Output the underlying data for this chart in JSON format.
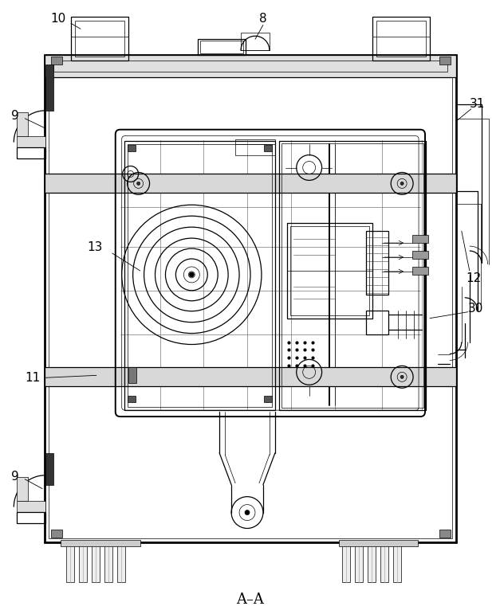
{
  "bg_color": "#ffffff",
  "line_color": "#000000",
  "dark_line": "#111111",
  "gray_fill": "#d8d8d8",
  "med_gray": "#aaaaaa",
  "light_gray": "#eeeeee",
  "label_color": "#000000",
  "title_text": "A–A",
  "figsize": [
    6.27,
    7.66
  ],
  "dpi": 100,
  "lw_thin": 0.5,
  "lw_med": 0.9,
  "lw_thick": 1.4,
  "lw_heavy": 2.0,
  "label_fs": 11
}
